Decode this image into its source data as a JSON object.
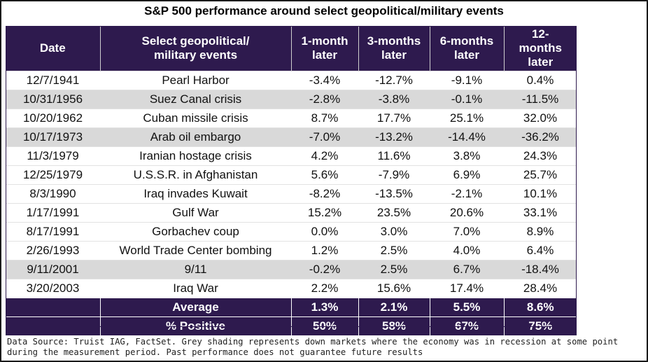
{
  "title": "S&P 500 performance around select geopolitical/military events",
  "headers": {
    "date": "Date",
    "event_line1": "Select geopolitical/",
    "event_line2": "military events",
    "m1_line1": "1-month",
    "m1_line2": "later",
    "m3_line1": "3-months",
    "m3_line2": "later",
    "m6_line1": "6-months",
    "m6_line2": "later",
    "m12_line1": "12-",
    "m12_line2": "months",
    "m12_line3": "later"
  },
  "rows": [
    {
      "date": "12/7/1941",
      "event": "Pearl Harbor",
      "m1": "-3.4%",
      "m3": "-12.7%",
      "m6": "-9.1%",
      "m12": "0.4%",
      "recession": false
    },
    {
      "date": "10/31/1956",
      "event": "Suez Canal crisis",
      "m1": "-2.8%",
      "m3": "-3.8%",
      "m6": "-0.1%",
      "m12": "-11.5%",
      "recession": true
    },
    {
      "date": "10/20/1962",
      "event": "Cuban missile crisis",
      "m1": "8.7%",
      "m3": "17.7%",
      "m6": "25.1%",
      "m12": "32.0%",
      "recession": false
    },
    {
      "date": "10/17/1973",
      "event": "Arab oil embargo",
      "m1": "-7.0%",
      "m3": "-13.2%",
      "m6": "-14.4%",
      "m12": "-36.2%",
      "recession": true
    },
    {
      "date": "11/3/1979",
      "event": "Iranian hostage crisis",
      "m1": "4.2%",
      "m3": "11.6%",
      "m6": "3.8%",
      "m12": "24.3%",
      "recession": false
    },
    {
      "date": "12/25/1979",
      "event": "U.S.S.R. in Afghanistan",
      "m1": "5.6%",
      "m3": "-7.9%",
      "m6": "6.9%",
      "m12": "25.7%",
      "recession": false
    },
    {
      "date": "8/3/1990",
      "event": "Iraq invades Kuwait",
      "m1": "-8.2%",
      "m3": "-13.5%",
      "m6": "-2.1%",
      "m12": "10.1%",
      "recession": false
    },
    {
      "date": "1/17/1991",
      "event": "Gulf War",
      "m1": "15.2%",
      "m3": "23.5%",
      "m6": "20.6%",
      "m12": "33.1%",
      "recession": false
    },
    {
      "date": "8/17/1991",
      "event": "Gorbachev coup",
      "m1": "0.0%",
      "m3": "3.0%",
      "m6": "7.0%",
      "m12": "8.9%",
      "recession": false
    },
    {
      "date": "2/26/1993",
      "event": "World Trade Center bombing",
      "m1": "1.2%",
      "m3": "2.5%",
      "m6": "4.0%",
      "m12": "6.4%",
      "recession": false
    },
    {
      "date": "9/11/2001",
      "event": "9/11",
      "m1": "-0.2%",
      "m3": "2.5%",
      "m6": "6.7%",
      "m12": "-18.4%",
      "recession": true
    },
    {
      "date": "3/20/2003",
      "event": "Iraq War",
      "m1": "2.2%",
      "m3": "15.6%",
      "m6": "17.4%",
      "m12": "28.4%",
      "recession": false
    }
  ],
  "summary": [
    {
      "label": "Average",
      "m1": "1.3%",
      "m3": "2.1%",
      "m6": "5.5%",
      "m12": "8.6%"
    },
    {
      "label": "% Positive",
      "m1": "50%",
      "m3": "58%",
      "m6": "67%",
      "m12": "75%"
    }
  ],
  "source_note": "Data Source: Truist IAG, FactSet. Grey shading represents down markets where the economy was in recession at some point during the measurement period. Past performance does not guarantee future results",
  "colors": {
    "header_bg": "#2e1a4e",
    "shade": "#d9d9d9"
  }
}
